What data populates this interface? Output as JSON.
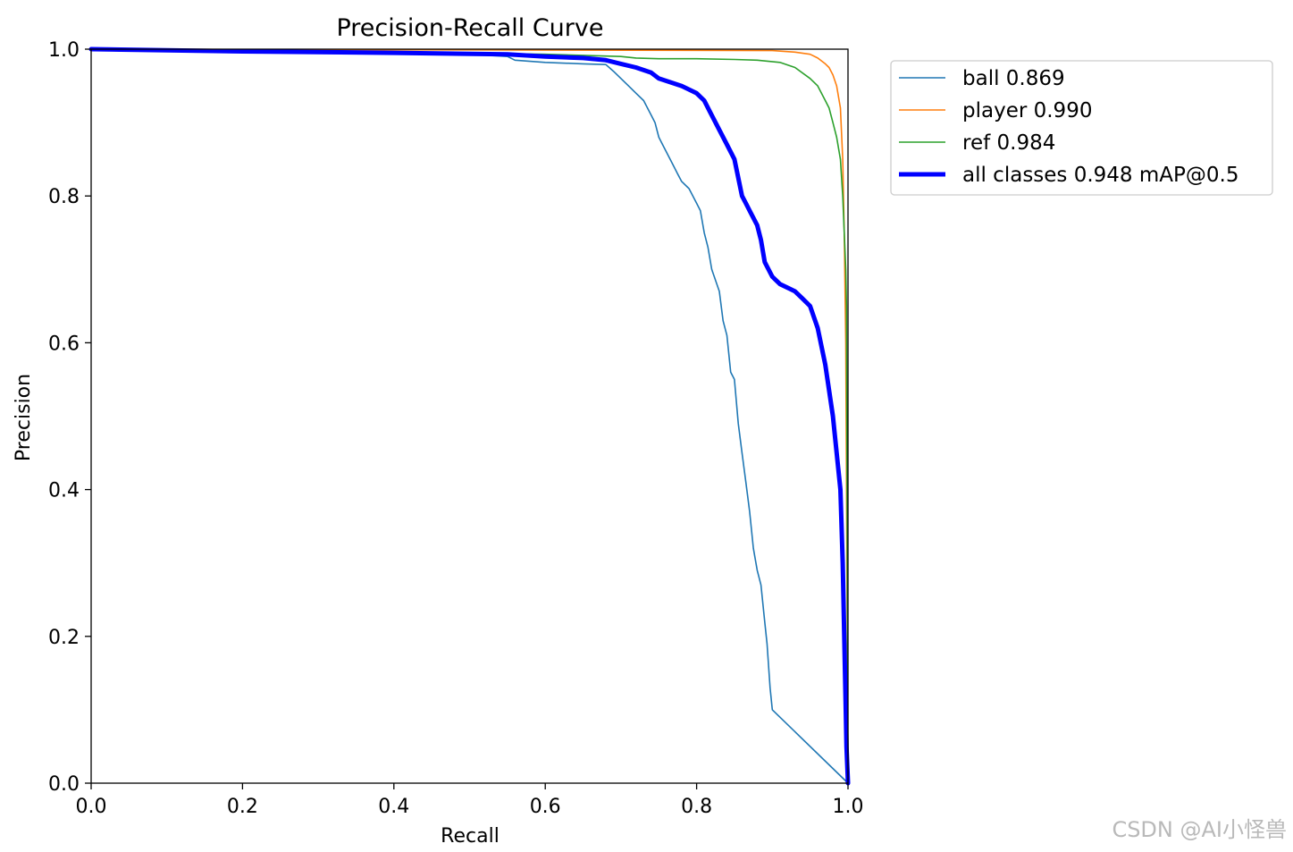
{
  "chart_data": {
    "type": "line",
    "title": "Precision-Recall Curve",
    "xlabel": "Recall",
    "ylabel": "Precision",
    "xlim": [
      0,
      1
    ],
    "ylim": [
      0,
      1
    ],
    "xticks": [
      "0.0",
      "0.2",
      "0.4",
      "0.6",
      "0.8",
      "1.0"
    ],
    "yticks": [
      "0.0",
      "0.2",
      "0.4",
      "0.6",
      "0.8",
      "1.0"
    ],
    "legend_position": "outside top-right",
    "series": [
      {
        "name": "ball 0.869",
        "color": "#1f77b4",
        "thick": false,
        "x": [
          0.0,
          0.1,
          0.3,
          0.5,
          0.55,
          0.56,
          0.6,
          0.65,
          0.68,
          0.69,
          0.7,
          0.71,
          0.72,
          0.73,
          0.74,
          0.745,
          0.75,
          0.755,
          0.76,
          0.77,
          0.775,
          0.78,
          0.79,
          0.8,
          0.805,
          0.81,
          0.815,
          0.82,
          0.83,
          0.835,
          0.84,
          0.845,
          0.85,
          0.855,
          0.86,
          0.865,
          0.87,
          0.875,
          0.88,
          0.885,
          0.89,
          0.893,
          0.897,
          0.9,
          1.0
        ],
        "y": [
          1.0,
          0.998,
          0.996,
          0.993,
          0.99,
          0.985,
          0.982,
          0.98,
          0.979,
          0.97,
          0.96,
          0.95,
          0.94,
          0.93,
          0.91,
          0.9,
          0.88,
          0.87,
          0.86,
          0.84,
          0.83,
          0.82,
          0.81,
          0.79,
          0.78,
          0.75,
          0.73,
          0.7,
          0.67,
          0.63,
          0.61,
          0.56,
          0.55,
          0.49,
          0.45,
          0.41,
          0.37,
          0.32,
          0.29,
          0.27,
          0.22,
          0.19,
          0.13,
          0.1,
          0.0
        ]
      },
      {
        "name": "player 0.990",
        "color": "#ff7f0e",
        "thick": false,
        "x": [
          0.0,
          0.5,
          0.9,
          0.93,
          0.95,
          0.96,
          0.97,
          0.975,
          0.98,
          0.985,
          0.99,
          0.993,
          0.995,
          0.997,
          1.0
        ],
        "y": [
          1.0,
          0.999,
          0.998,
          0.996,
          0.993,
          0.988,
          0.98,
          0.975,
          0.965,
          0.95,
          0.92,
          0.85,
          0.75,
          0.6,
          0.0
        ]
      },
      {
        "name": "ref 0.984",
        "color": "#2ca02c",
        "thick": false,
        "x": [
          0.0,
          0.4,
          0.6,
          0.7,
          0.72,
          0.75,
          0.8,
          0.85,
          0.88,
          0.91,
          0.93,
          0.95,
          0.96,
          0.97,
          0.975,
          0.98,
          0.985,
          0.99,
          0.993,
          0.995,
          0.997,
          0.998,
          1.0
        ],
        "y": [
          1.0,
          0.996,
          0.993,
          0.99,
          0.988,
          0.987,
          0.987,
          0.986,
          0.985,
          0.982,
          0.975,
          0.96,
          0.95,
          0.93,
          0.92,
          0.9,
          0.88,
          0.85,
          0.8,
          0.75,
          0.7,
          0.65,
          0.0
        ]
      },
      {
        "name": "all classes 0.948 mAP@0.5",
        "color": "#0000ff",
        "thick": true,
        "x": [
          0.0,
          0.2,
          0.4,
          0.55,
          0.6,
          0.65,
          0.68,
          0.7,
          0.72,
          0.74,
          0.75,
          0.78,
          0.8,
          0.81,
          0.82,
          0.83,
          0.84,
          0.85,
          0.86,
          0.865,
          0.87,
          0.88,
          0.885,
          0.89,
          0.9,
          0.91,
          0.92,
          0.93,
          0.94,
          0.95,
          0.96,
          0.97,
          0.98,
          0.99,
          0.993,
          0.995,
          0.997,
          0.998,
          1.0
        ],
        "y": [
          1.0,
          0.997,
          0.995,
          0.993,
          0.99,
          0.988,
          0.985,
          0.98,
          0.975,
          0.968,
          0.96,
          0.95,
          0.94,
          0.93,
          0.91,
          0.89,
          0.87,
          0.85,
          0.8,
          0.79,
          0.78,
          0.76,
          0.74,
          0.71,
          0.69,
          0.68,
          0.675,
          0.67,
          0.66,
          0.65,
          0.62,
          0.57,
          0.5,
          0.4,
          0.3,
          0.2,
          0.1,
          0.05,
          0.0
        ]
      }
    ]
  },
  "watermark": "CSDN @AI小怪兽"
}
